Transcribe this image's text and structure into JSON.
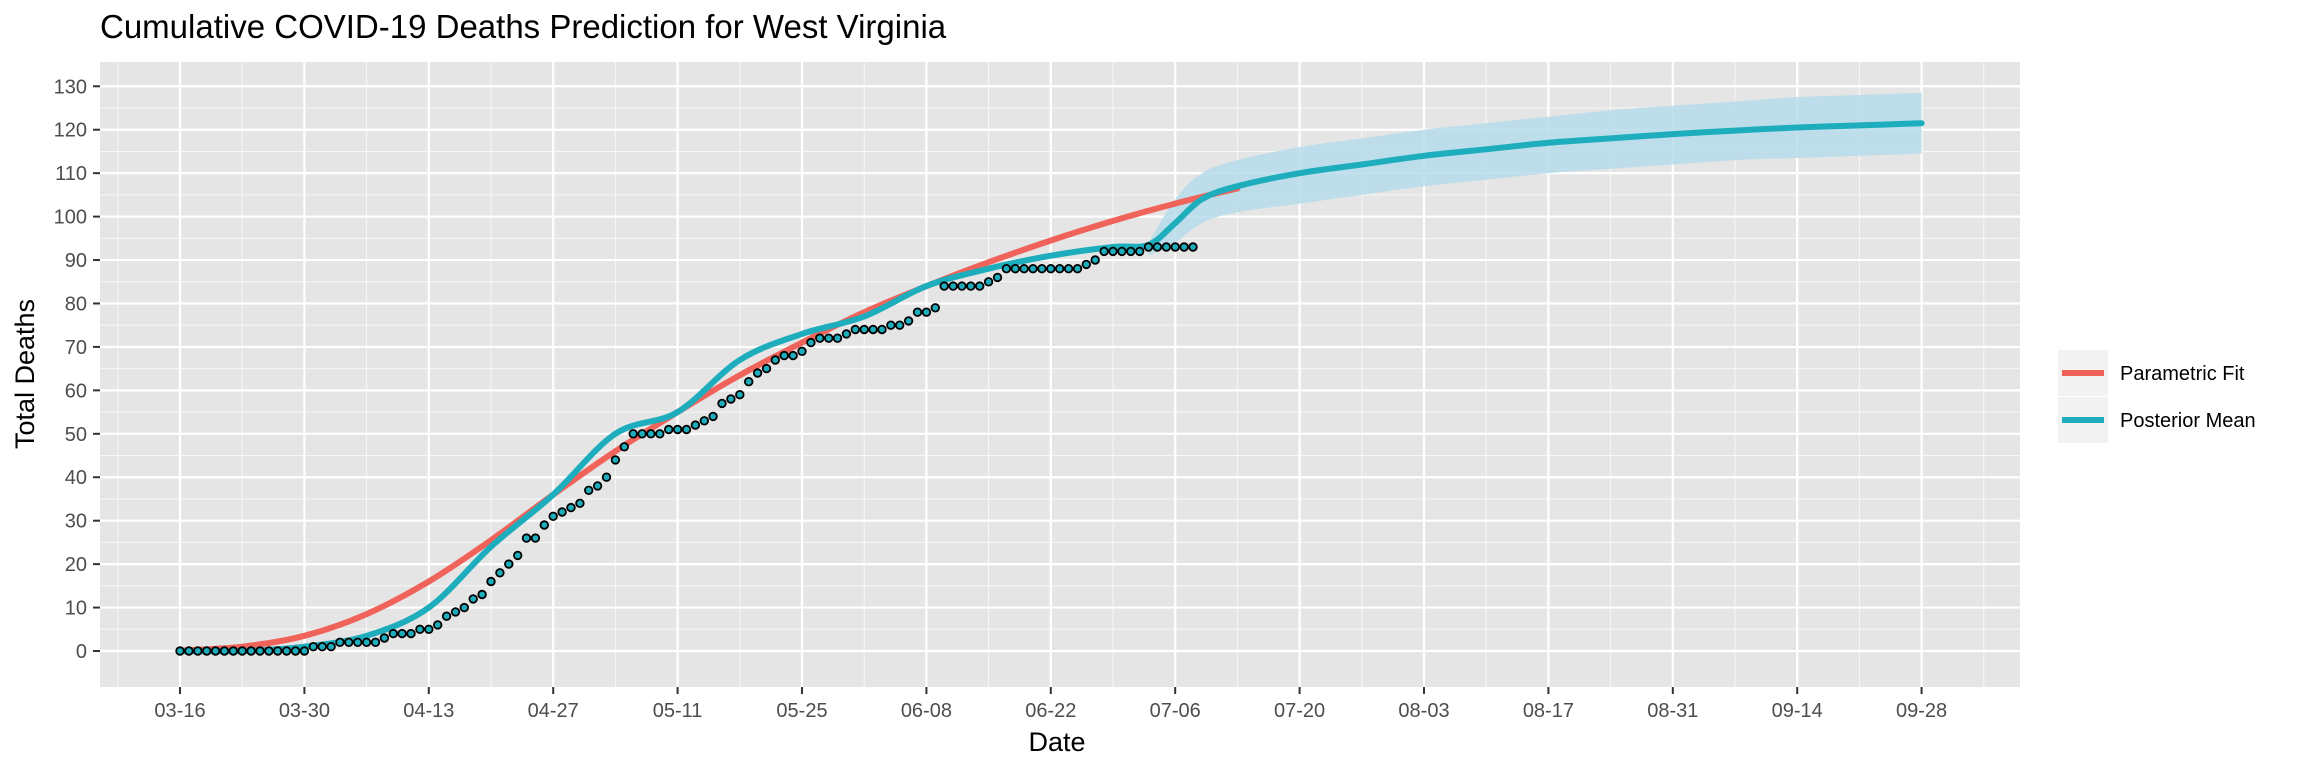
{
  "chart_data": {
    "type": "line",
    "title": "Cumulative COVID-19 Deaths Prediction for West Virginia",
    "xlabel": "Date",
    "ylabel": "Total Deaths",
    "x_ticks": [
      "03-16",
      "03-30",
      "04-13",
      "04-27",
      "05-11",
      "05-25",
      "06-08",
      "06-22",
      "07-06",
      "07-20",
      "08-03",
      "08-17",
      "08-31",
      "09-14",
      "09-28"
    ],
    "y_ticks": [
      0,
      10,
      20,
      30,
      40,
      50,
      60,
      70,
      80,
      90,
      100,
      110,
      120,
      130
    ],
    "ylim": [
      -3,
      133
    ],
    "grid": true,
    "legend_position": "right",
    "colors": {
      "panel_background": "#e5e5e5",
      "grid": "#ffffff",
      "parametric_fit": "#f0635a",
      "posterior_mean": "#1eadbd",
      "credible_band": "#b5dcea",
      "observed_point_fill": "#1eadbd",
      "observed_point_stroke": "#000000"
    },
    "series": [
      {
        "name": "Parametric Fit",
        "style": "line",
        "x": [
          "03-16",
          "03-23",
          "03-30",
          "04-06",
          "04-13",
          "04-20",
          "04-27",
          "05-04",
          "05-11",
          "05-18",
          "05-25",
          "06-01",
          "06-08",
          "06-15",
          "06-22",
          "06-29",
          "07-06",
          "07-13"
        ],
        "values": [
          0.1,
          1.0,
          3.5,
          8.5,
          16.0,
          25.5,
          36.0,
          46.0,
          55.0,
          63.5,
          71.0,
          78.0,
          84.0,
          89.5,
          94.5,
          99.0,
          103.0,
          106.5
        ]
      },
      {
        "name": "Posterior Mean",
        "style": "line",
        "x": [
          "03-16",
          "03-23",
          "03-30",
          "04-06",
          "04-13",
          "04-20",
          "04-27",
          "05-04",
          "05-11",
          "05-18",
          "05-25",
          "06-01",
          "06-08",
          "06-15",
          "06-22",
          "06-29",
          "07-03",
          "07-06",
          "07-09",
          "07-13",
          "07-20",
          "07-27",
          "08-03",
          "08-10",
          "08-17",
          "08-24",
          "08-31",
          "09-07",
          "09-14",
          "09-21",
          "09-28"
        ],
        "values": [
          0,
          0,
          1,
          3.5,
          10,
          24,
          36,
          50,
          55,
          67,
          73,
          77,
          84,
          88,
          91,
          93,
          93.5,
          98.5,
          104,
          107,
          110,
          112,
          114,
          115.5,
          117,
          118,
          119,
          119.8,
          120.5,
          121,
          121.5
        ]
      },
      {
        "name": "credible band",
        "style": "band",
        "x": [
          "07-03",
          "07-06",
          "07-09",
          "07-13",
          "07-20",
          "07-27",
          "08-03",
          "08-10",
          "08-17",
          "08-24",
          "08-31",
          "09-07",
          "09-14",
          "09-21",
          "09-28"
        ],
        "lower": [
          91,
          94,
          98.5,
          101,
          103,
          105,
          107,
          108.5,
          110,
          111,
          112,
          113,
          113.5,
          114,
          114.5
        ],
        "upper": [
          94,
          104,
          110,
          113,
          116,
          118,
          120,
          121.5,
          123,
          124.5,
          125.5,
          126.5,
          127.5,
          128,
          128.5
        ]
      },
      {
        "name": "observed",
        "style": "points",
        "x_start": "03-16",
        "values": [
          0,
          0,
          0,
          0,
          0,
          0,
          0,
          0,
          0,
          0,
          0,
          0,
          0,
          0,
          0,
          1,
          1,
          1,
          2,
          2,
          2,
          2,
          2,
          3,
          4,
          4,
          4,
          5,
          5,
          6,
          8,
          9,
          10,
          12,
          13,
          16,
          18,
          20,
          22,
          26,
          26,
          29,
          31,
          32,
          33,
          34,
          37,
          38,
          40,
          44,
          47,
          50,
          50,
          50,
          50,
          51,
          51,
          51,
          52,
          53,
          54,
          57,
          58,
          59,
          62,
          64,
          65,
          67,
          68,
          68,
          69,
          71,
          72,
          72,
          72,
          73,
          74,
          74,
          74,
          74,
          75,
          75,
          76,
          78,
          78,
          79,
          84,
          84,
          84,
          84,
          84,
          85,
          86,
          88,
          88,
          88,
          88,
          88,
          88,
          88,
          88,
          88,
          89,
          90,
          92,
          92,
          92,
          92,
          92,
          93,
          93,
          93,
          93,
          93,
          93
        ]
      }
    ]
  }
}
